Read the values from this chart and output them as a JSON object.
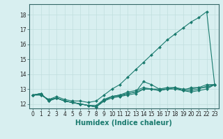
{
  "xlabel": "Humidex (Indice chaleur)",
  "x": [
    0,
    1,
    2,
    3,
    4,
    5,
    6,
    7,
    8,
    9,
    10,
    11,
    12,
    13,
    14,
    15,
    16,
    17,
    18,
    19,
    20,
    21,
    22,
    23
  ],
  "series": [
    [
      12.6,
      12.6,
      12.3,
      12.5,
      12.3,
      12.2,
      12.2,
      12.1,
      12.2,
      12.6,
      13.0,
      13.3,
      13.8,
      14.3,
      14.8,
      15.3,
      15.8,
      16.3,
      16.7,
      17.1,
      17.5,
      17.8,
      18.2,
      13.3
    ],
    [
      12.6,
      12.7,
      12.2,
      12.4,
      12.2,
      12.1,
      12.0,
      11.9,
      11.8,
      12.3,
      12.5,
      12.6,
      12.7,
      12.8,
      13.5,
      13.3,
      13.0,
      13.1,
      13.1,
      12.9,
      13.1,
      13.1,
      13.3,
      13.3
    ],
    [
      12.6,
      12.7,
      12.2,
      12.4,
      12.2,
      12.1,
      12.0,
      11.9,
      11.8,
      12.2,
      12.5,
      12.5,
      12.7,
      12.8,
      13.0,
      13.0,
      12.9,
      13.0,
      13.1,
      12.9,
      12.9,
      13.0,
      13.2,
      13.3
    ],
    [
      12.6,
      12.7,
      12.2,
      12.4,
      12.2,
      12.1,
      12.0,
      11.9,
      11.8,
      12.2,
      12.4,
      12.5,
      12.6,
      12.7,
      13.0,
      13.0,
      12.9,
      13.0,
      13.0,
      12.9,
      12.8,
      12.9,
      13.0,
      13.3
    ],
    [
      12.6,
      12.6,
      12.3,
      12.4,
      12.2,
      12.1,
      12.0,
      11.9,
      11.9,
      12.3,
      12.5,
      12.6,
      12.8,
      12.9,
      13.1,
      13.0,
      13.0,
      13.0,
      13.1,
      13.0,
      13.0,
      13.1,
      13.1,
      13.3
    ]
  ],
  "line_color": "#1a7a6e",
  "marker": "D",
  "marker_size": 2.0,
  "bg_color": "#d8eff0",
  "grid_color": "#c0dede",
  "ylim": [
    11.7,
    18.7
  ],
  "yticks": [
    12,
    13,
    14,
    15,
    16,
    17,
    18
  ],
  "xticks": [
    0,
    1,
    2,
    3,
    4,
    5,
    6,
    7,
    8,
    9,
    10,
    11,
    12,
    13,
    14,
    15,
    16,
    17,
    18,
    19,
    20,
    21,
    22,
    23
  ],
  "tick_fontsize": 5.5,
  "label_fontsize": 7.0
}
